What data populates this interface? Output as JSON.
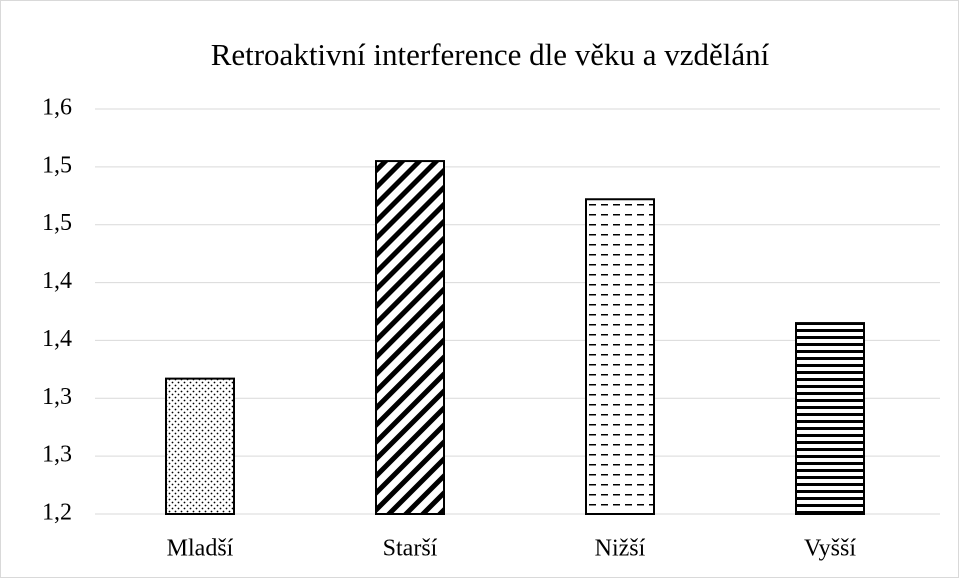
{
  "chart_data": {
    "type": "bar",
    "title": "Retroaktivní interference dle věku a vzdělání",
    "categories": [
      "Mladší",
      "Starší",
      "Nižší",
      "Vyšší"
    ],
    "values": [
      1.317,
      1.505,
      1.472,
      1.365
    ],
    "color": "#000000",
    "ylim": [
      1.2,
      1.55
    ],
    "yticks": [
      {
        "value": 1.2,
        "label": "1,2"
      },
      {
        "value": 1.25,
        "label": "1,3"
      },
      {
        "value": 1.3,
        "label": "1,3"
      },
      {
        "value": 1.35,
        "label": "1,4"
      },
      {
        "value": 1.4,
        "label": "1,4"
      },
      {
        "value": 1.45,
        "label": "1,5"
      },
      {
        "value": 1.5,
        "label": "1,5"
      },
      {
        "value": 1.55,
        "label": "1,6"
      }
    ],
    "grid": true
  }
}
